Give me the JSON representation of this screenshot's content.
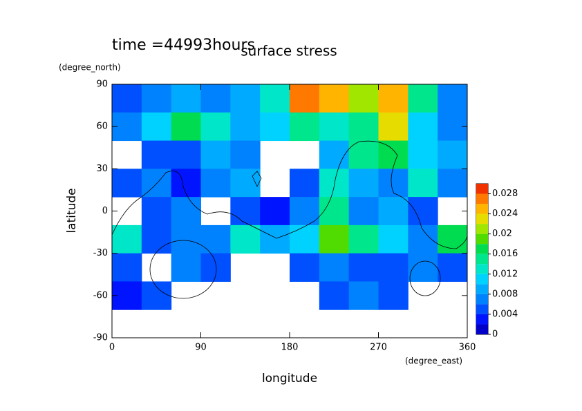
{
  "chart_data": {
    "type": "contourf",
    "title": "surface stress",
    "subtitle": "time =44993hours",
    "x_label": "longitude",
    "y_label": "latitude",
    "x_units": "(degree_east)",
    "y_units": "(degree_north)",
    "x": [
      15,
      45,
      75,
      105,
      135,
      165,
      195,
      225,
      255,
      285,
      315,
      345
    ],
    "y": [
      80,
      60,
      40,
      20,
      0,
      -20,
      -40,
      -60,
      -80
    ],
    "z": [
      [
        0.004,
        0.006,
        0.008,
        0.006,
        0.008,
        0.012,
        0.026,
        0.024,
        0.02,
        0.024,
        0.014,
        0.006
      ],
      [
        0.006,
        0.01,
        0.016,
        0.012,
        0.008,
        0.01,
        0.014,
        0.012,
        0.014,
        0.022,
        0.01,
        0.006
      ],
      [
        null,
        0.004,
        0.004,
        0.008,
        0.006,
        null,
        null,
        0.008,
        0.014,
        0.016,
        0.01,
        0.008
      ],
      [
        0.004,
        0.006,
        0.002,
        0.006,
        0.008,
        null,
        0.004,
        0.012,
        0.008,
        0.006,
        0.012,
        0.006
      ],
      [
        null,
        0.004,
        0.006,
        null,
        0.004,
        0.002,
        0.006,
        0.014,
        0.006,
        0.008,
        0.004,
        null
      ],
      [
        0.012,
        0.004,
        0.006,
        0.006,
        0.012,
        0.008,
        0.01,
        0.018,
        0.014,
        0.01,
        0.006,
        0.016
      ],
      [
        0.004,
        null,
        0.006,
        0.004,
        null,
        null,
        0.004,
        0.006,
        0.004,
        0.004,
        0.006,
        0.004
      ],
      [
        0.002,
        0.004,
        null,
        null,
        null,
        null,
        null,
        0.004,
        0.006,
        0.004,
        null,
        null
      ],
      [
        null,
        null,
        null,
        null,
        null,
        null,
        null,
        null,
        null,
        null,
        null,
        null
      ]
    ],
    "xlim": [
      0,
      360
    ],
    "xticks": [
      0,
      90,
      180,
      270,
      360
    ],
    "ylim": [
      -90,
      90
    ],
    "yticks": [
      -90,
      -60,
      -30,
      0,
      30,
      60,
      90
    ],
    "levels": [
      0,
      0.002,
      0.004,
      0.006,
      0.008,
      0.01,
      0.012,
      0.014,
      0.016,
      0.018,
      0.02,
      0.022,
      0.024,
      0.026,
      0.028,
      0.03
    ],
    "colors": [
      "#0000c8",
      "#0014ff",
      "#0050ff",
      "#0082ff",
      "#00aaff",
      "#00d2ff",
      "#00e6c8",
      "#00e68c",
      "#00dc50",
      "#50dc00",
      "#a0e600",
      "#e6dc00",
      "#ffb400",
      "#ff7800",
      "#f03200"
    ],
    "colorbar_ticks": [
      0,
      0.004,
      0.008,
      0.012,
      0.016,
      0.02,
      0.024,
      0.028
    ]
  }
}
